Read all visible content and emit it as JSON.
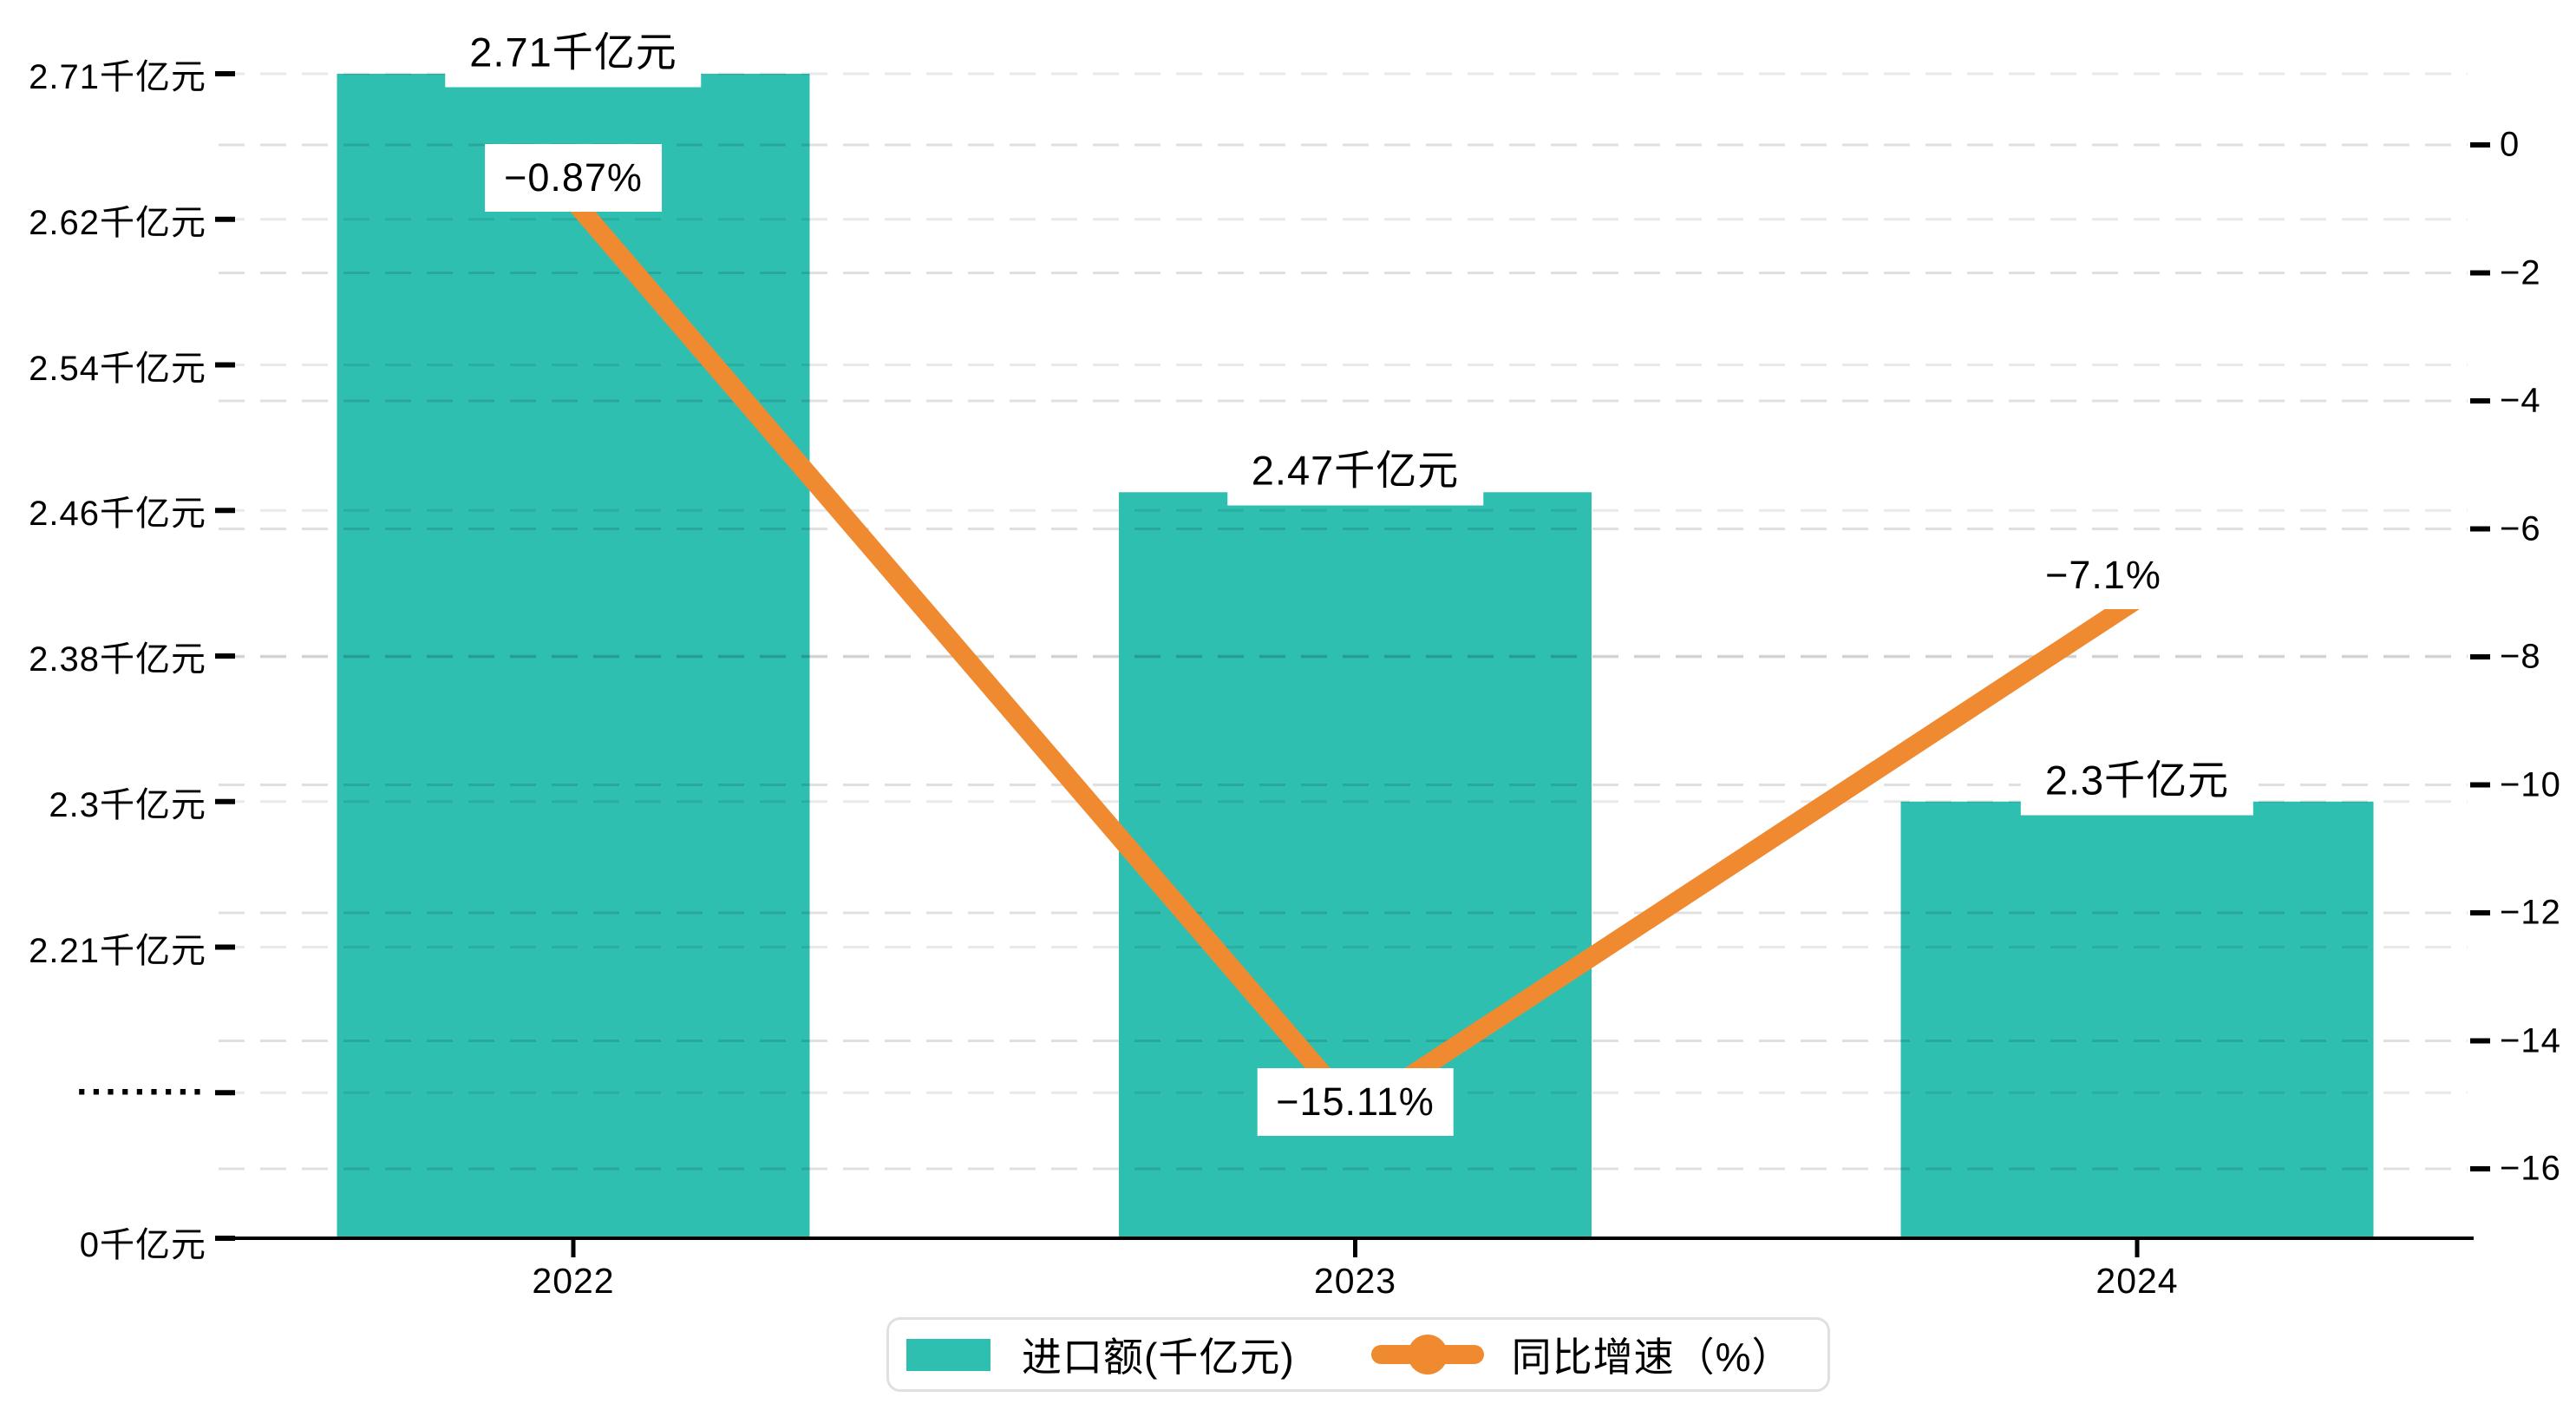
{
  "chart_data": {
    "type": "bar",
    "subtype": "bar-line-combo",
    "categories": [
      "2022",
      "2023",
      "2024"
    ],
    "series": [
      {
        "name": "进口额(千亿元)",
        "type": "bar",
        "axis": "left",
        "color": "#2fbfb1",
        "values": [
          2.71,
          2.47,
          2.3
        ],
        "data_labels": [
          "2.71千亿元",
          "2.47千亿元",
          "2.3千亿元"
        ]
      },
      {
        "name": "同比增速（%）",
        "type": "line",
        "axis": "right",
        "color": "#ef8a31",
        "values": [
          -0.87,
          -15.11,
          -7.1
        ],
        "data_labels": [
          "−0.87%",
          "−15.11%",
          "−7.1%"
        ]
      }
    ],
    "left_axis": {
      "unit": "千亿元",
      "ticks": [
        "2.71千亿元",
        "2.62千亿元",
        "2.54千亿元",
        "2.46千亿元",
        "2.38千亿元",
        "2.3千亿元",
        "2.21千亿元",
        "·········",
        "0千亿元"
      ],
      "tick_values": [
        2.71,
        2.62,
        2.54,
        2.46,
        2.38,
        2.3,
        2.21,
        null,
        0
      ],
      "has_axis_break": true,
      "visible_value_range": [
        2.21,
        2.71
      ]
    },
    "right_axis": {
      "ticks": [
        "0",
        "−2",
        "−4",
        "−6",
        "−8",
        "−10",
        "−12",
        "−14",
        "−16"
      ],
      "tick_values": [
        0,
        -2,
        -4,
        -6,
        -8,
        -10,
        -12,
        -14,
        -16
      ],
      "range": [
        0,
        -16
      ]
    },
    "legend": {
      "position": "bottom-center",
      "items": [
        {
          "label": "进口额(千亿元)",
          "marker": "square"
        },
        {
          "label": "同比增速（%）",
          "marker": "line-dot"
        }
      ]
    },
    "grid": true,
    "title": "",
    "colors": {
      "bar": "#2fbfb1",
      "line": "#ef8a31",
      "axis": "#000000",
      "label_bg": "#ffffff",
      "legend_border": "#e0e0e0"
    }
  }
}
